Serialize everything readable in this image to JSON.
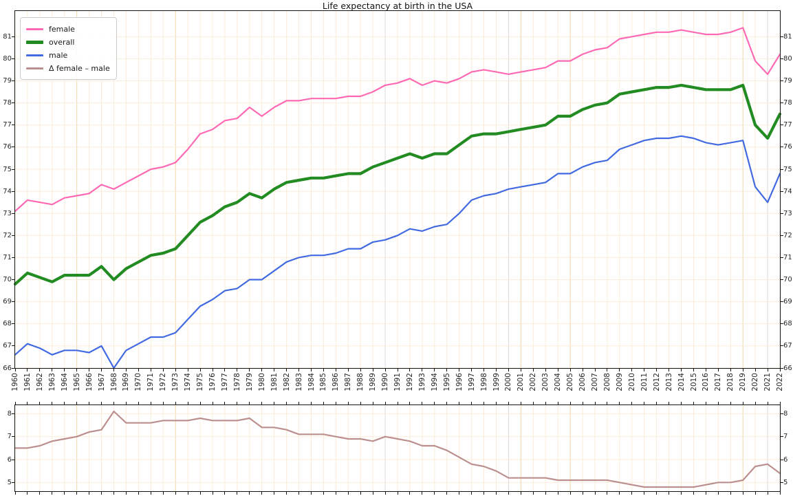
{
  "title": "Life expectancy at birth in the USA",
  "legend": {
    "items": [
      {
        "label": "female",
        "color": "#ff69b4",
        "thickness": 2.5
      },
      {
        "label": "overall",
        "color": "#228b22",
        "thickness": 4.5
      },
      {
        "label": "male",
        "color": "#4169e1",
        "thickness": 2.5
      },
      {
        "label": "Δ female – male",
        "color": "#bc8f8f",
        "thickness": 2.5
      }
    ]
  },
  "chart_data": {
    "type": "line",
    "title": "Life expectancy at birth in the USA",
    "x": [
      1960,
      1961,
      1962,
      1963,
      1964,
      1965,
      1966,
      1967,
      1968,
      1969,
      1970,
      1971,
      1972,
      1973,
      1974,
      1975,
      1976,
      1977,
      1978,
      1979,
      1980,
      1981,
      1982,
      1983,
      1984,
      1985,
      1986,
      1987,
      1988,
      1989,
      1990,
      1991,
      1992,
      1993,
      1994,
      1995,
      1996,
      1997,
      1998,
      1999,
      2000,
      2001,
      2002,
      2003,
      2004,
      2005,
      2006,
      2007,
      2008,
      2009,
      2010,
      2011,
      2012,
      2013,
      2014,
      2015,
      2016,
      2017,
      2018,
      2019,
      2020,
      2021,
      2022
    ],
    "xlabel": "",
    "ylabel": "",
    "grid": {
      "color": "#faecd9",
      "accent_color": "#f2d6aa",
      "gray_color": "#d9d9d9",
      "accent_years": [
        1965,
        1973,
        2001,
        2005,
        2019
      ],
      "gray_years": [
        1990,
        2000,
        2021
      ]
    },
    "panels": [
      {
        "name": "main",
        "ylim": [
          66,
          82.16
        ],
        "yticks": [
          66,
          67,
          68,
          69,
          70,
          71,
          72,
          73,
          74,
          75,
          76,
          77,
          78,
          79,
          80,
          81
        ],
        "series": [
          {
            "name": "female",
            "color": "#ff69b4",
            "width": 2.2,
            "values": [
              73.1,
              73.6,
              73.5,
              73.4,
              73.7,
              73.8,
              73.9,
              74.3,
              74.1,
              74.4,
              74.7,
              75.0,
              75.1,
              75.3,
              75.9,
              76.6,
              76.8,
              77.2,
              77.3,
              77.8,
              77.4,
              77.8,
              78.1,
              78.1,
              78.2,
              78.2,
              78.2,
              78.3,
              78.3,
              78.5,
              78.8,
              78.9,
              79.1,
              78.8,
              79.0,
              78.9,
              79.1,
              79.4,
              79.5,
              79.4,
              79.3,
              79.4,
              79.5,
              79.6,
              79.9,
              79.9,
              80.2,
              80.4,
              80.5,
              80.9,
              81.0,
              81.1,
              81.2,
              81.2,
              81.3,
              81.2,
              81.1,
              81.1,
              81.2,
              81.4,
              79.9,
              79.3,
              80.2
            ]
          },
          {
            "name": "overall",
            "color": "#228b22",
            "width": 4.2,
            "values": [
              69.8,
              70.3,
              70.1,
              69.9,
              70.2,
              70.2,
              70.2,
              70.6,
              70.0,
              70.5,
              70.8,
              71.1,
              71.2,
              71.4,
              72.0,
              72.6,
              72.9,
              73.3,
              73.5,
              73.9,
              73.7,
              74.1,
              74.4,
              74.5,
              74.6,
              74.6,
              74.7,
              74.8,
              74.8,
              75.1,
              75.3,
              75.5,
              75.7,
              75.5,
              75.7,
              75.7,
              76.1,
              76.5,
              76.6,
              76.6,
              76.7,
              76.8,
              76.9,
              77.0,
              77.4,
              77.4,
              77.7,
              77.9,
              78.0,
              78.4,
              78.5,
              78.6,
              78.7,
              78.7,
              78.8,
              78.7,
              78.6,
              78.6,
              78.6,
              78.8,
              77.0,
              76.4,
              77.5
            ]
          },
          {
            "name": "male",
            "color": "#4169e1",
            "width": 2.2,
            "values": [
              66.6,
              67.1,
              66.9,
              66.6,
              66.8,
              66.8,
              66.7,
              67.0,
              66.0,
              66.8,
              67.1,
              67.4,
              67.4,
              67.6,
              68.2,
              68.8,
              69.1,
              69.5,
              69.6,
              70.0,
              70.0,
              70.4,
              70.8,
              71.0,
              71.1,
              71.1,
              71.2,
              71.4,
              71.4,
              71.7,
              71.8,
              72.0,
              72.3,
              72.2,
              72.4,
              72.5,
              73.0,
              73.6,
              73.8,
              73.9,
              74.1,
              74.2,
              74.3,
              74.4,
              74.8,
              74.8,
              75.1,
              75.3,
              75.4,
              75.9,
              76.1,
              76.3,
              76.4,
              76.4,
              76.5,
              76.4,
              76.2,
              76.1,
              76.2,
              76.3,
              74.2,
              73.5,
              74.8
            ]
          }
        ]
      },
      {
        "name": "delta",
        "ylim": [
          4.62,
          8.37
        ],
        "yticks": [
          5,
          6,
          7,
          8
        ],
        "series": [
          {
            "name": "Δ female – male",
            "color": "#bc8f8f",
            "width": 2.2,
            "values": [
              6.5,
              6.5,
              6.6,
              6.8,
              6.9,
              7.0,
              7.2,
              7.3,
              8.1,
              7.6,
              7.6,
              7.6,
              7.7,
              7.7,
              7.7,
              7.8,
              7.7,
              7.7,
              7.7,
              7.8,
              7.4,
              7.4,
              7.3,
              7.1,
              7.1,
              7.1,
              7.0,
              6.9,
              6.9,
              6.8,
              7.0,
              6.9,
              6.8,
              6.6,
              6.6,
              6.4,
              6.1,
              5.8,
              5.7,
              5.5,
              5.2,
              5.2,
              5.2,
              5.2,
              5.1,
              5.1,
              5.1,
              5.1,
              5.1,
              5.0,
              4.9,
              4.8,
              4.8,
              4.8,
              4.8,
              4.8,
              4.9,
              5.0,
              5.0,
              5.1,
              5.7,
              5.8,
              5.4
            ]
          }
        ]
      }
    ]
  }
}
